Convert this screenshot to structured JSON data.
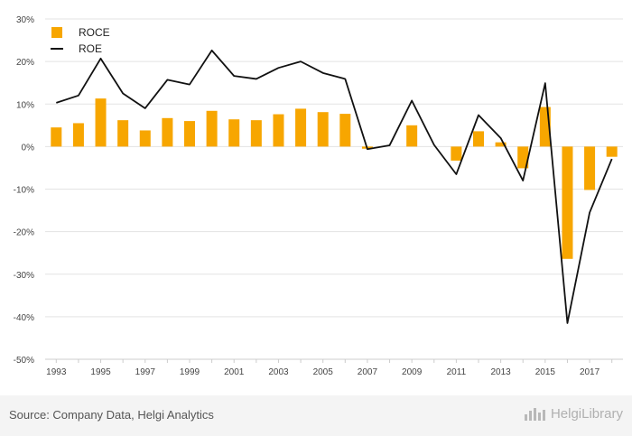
{
  "chart_data": {
    "type": "bar",
    "x": [
      "1993",
      "1994",
      "1995",
      "1996",
      "1997",
      "1998",
      "1999",
      "2000",
      "2001",
      "2002",
      "2003",
      "2004",
      "2005",
      "2006",
      "2007",
      "2008",
      "2009",
      "2010",
      "2011",
      "2012",
      "2013",
      "2014",
      "2015",
      "2016",
      "2017",
      "2018"
    ],
    "x_tick_labels": [
      "1993",
      "1995",
      "1997",
      "1999",
      "2001",
      "2003",
      "2005",
      "2007",
      "2009",
      "2011",
      "2013",
      "2015",
      "2017"
    ],
    "y_tick_labels": [
      "30%",
      "20%",
      "10%",
      "0%",
      "-10%",
      "-20%",
      "-30%",
      "-40%",
      "-50%"
    ],
    "ylim": [
      -50,
      30
    ],
    "grid": true,
    "legend_position": "top-left",
    "series": [
      {
        "name": "ROCE",
        "type": "bar",
        "color": "#f7a600",
        "values": [
          4.5,
          5.5,
          11.3,
          6.2,
          3.8,
          6.7,
          6.0,
          8.4,
          6.4,
          6.2,
          7.6,
          8.9,
          8.1,
          7.7,
          -0.5,
          0.0,
          5.0,
          0.0,
          -3.3,
          3.6,
          1.0,
          -5.1,
          9.3,
          -26.4,
          -10.2,
          -2.4
        ]
      },
      {
        "name": "ROE",
        "type": "line",
        "color": "#111111",
        "values": [
          10.3,
          12.0,
          20.7,
          12.5,
          9.0,
          15.7,
          14.6,
          22.6,
          16.6,
          15.9,
          18.5,
          20.0,
          17.3,
          15.9,
          -0.6,
          0.3,
          10.8,
          0.4,
          -6.5,
          7.4,
          2.0,
          -8.0,
          14.9,
          -41.5,
          -15.5,
          -2.9
        ]
      }
    ]
  },
  "footer": {
    "source": "Source: Company Data, Helgi Analytics",
    "brand": "HelgiLibrary"
  }
}
